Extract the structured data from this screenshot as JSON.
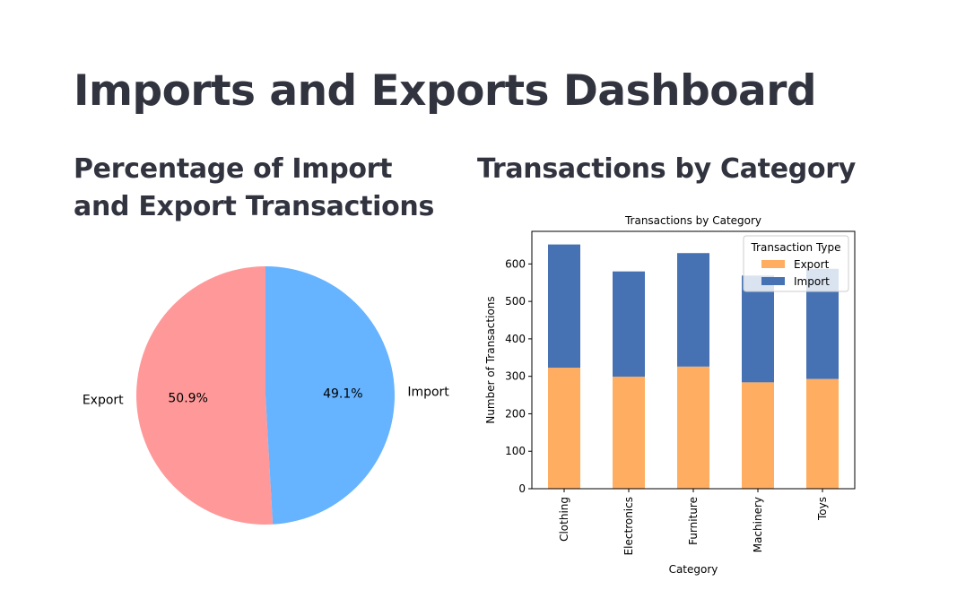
{
  "page_title": "Imports and Exports Dashboard",
  "pie_section": {
    "heading": "Percentage of Import and Export Transactions"
  },
  "bar_section": {
    "heading": "Transactions by Category"
  },
  "chart_data": [
    {
      "type": "pie",
      "labels": [
        "Export",
        "Import"
      ],
      "values": [
        50.9,
        49.1
      ],
      "percent_labels": [
        "50.9%",
        "49.1%"
      ],
      "colors": [
        "#ff9999",
        "#66b3ff"
      ],
      "start_angle_deg": 90
    },
    {
      "type": "bar",
      "stacked": true,
      "title": "Transactions by Category",
      "xlabel": "Category",
      "ylabel": "Number of Transactions",
      "categories": [
        "Clothing",
        "Electronics",
        "Furniture",
        "Machinery",
        "Toys"
      ],
      "series": [
        {
          "name": "Export",
          "values": [
            323,
            299,
            326,
            284,
            293
          ],
          "color": "#ffad60"
        },
        {
          "name": "Import",
          "values": [
            329,
            281,
            303,
            285,
            294
          ],
          "color": "#4672b4"
        }
      ],
      "ylim": [
        0,
        687
      ],
      "yticks": [
        0,
        100,
        200,
        300,
        400,
        500,
        600
      ],
      "legend": {
        "title": "Transaction Type",
        "position": "top-right"
      }
    }
  ]
}
